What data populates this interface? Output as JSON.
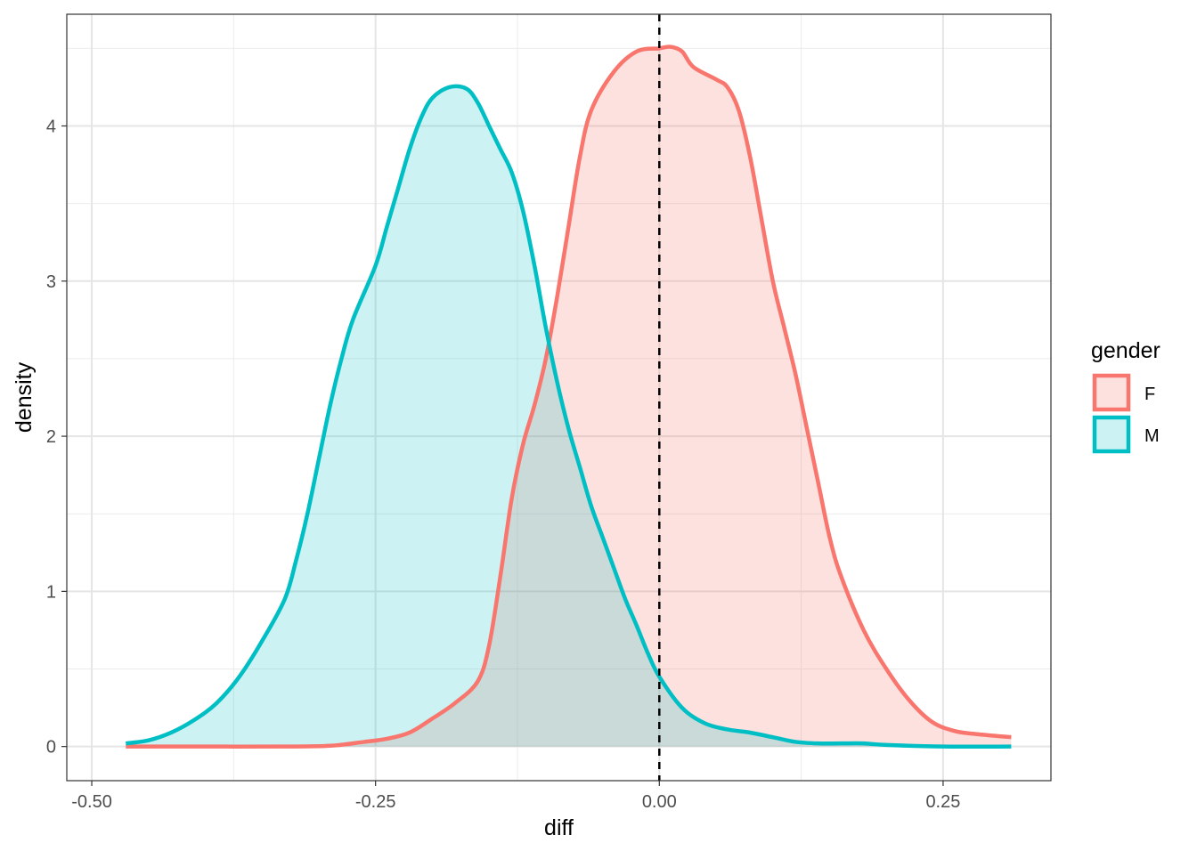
{
  "chart_data": {
    "type": "area",
    "xlabel": "diff",
    "ylabel": "density",
    "xlim": [
      -0.522,
      0.345
    ],
    "ylim": [
      -0.22,
      4.72
    ],
    "x_ticks": [
      -0.5,
      -0.25,
      0.0,
      0.25
    ],
    "x_tick_labels": [
      "-0.50",
      "-0.25",
      "0.00",
      "0.25"
    ],
    "y_ticks": [
      0,
      1,
      2,
      3,
      4
    ],
    "y_tick_labels": [
      "0",
      "1",
      "2",
      "3",
      "4"
    ],
    "grid": true,
    "legend": {
      "title": "gender",
      "position": "right"
    },
    "reference_line": {
      "x": 0.0,
      "style": "dashed",
      "color": "#000000"
    },
    "series": [
      {
        "name": "F",
        "color": "#F8766D",
        "fill": "#F8766D",
        "fill_opacity": 0.22,
        "points": [
          [
            -0.47,
            0.0
          ],
          [
            -0.4,
            0.0
          ],
          [
            -0.33,
            0.0
          ],
          [
            -0.29,
            0.005
          ],
          [
            -0.26,
            0.03
          ],
          [
            -0.24,
            0.05
          ],
          [
            -0.22,
            0.09
          ],
          [
            -0.2,
            0.18
          ],
          [
            -0.18,
            0.28
          ],
          [
            -0.16,
            0.42
          ],
          [
            -0.15,
            0.65
          ],
          [
            -0.14,
            1.1
          ],
          [
            -0.13,
            1.6
          ],
          [
            -0.12,
            1.95
          ],
          [
            -0.11,
            2.2
          ],
          [
            -0.1,
            2.5
          ],
          [
            -0.09,
            2.9
          ],
          [
            -0.08,
            3.35
          ],
          [
            -0.07,
            3.8
          ],
          [
            -0.06,
            4.1
          ],
          [
            -0.04,
            4.35
          ],
          [
            -0.02,
            4.48
          ],
          [
            0.0,
            4.5
          ],
          [
            0.01,
            4.51
          ],
          [
            0.02,
            4.48
          ],
          [
            0.03,
            4.38
          ],
          [
            0.05,
            4.3
          ],
          [
            0.06,
            4.25
          ],
          [
            0.07,
            4.1
          ],
          [
            0.08,
            3.8
          ],
          [
            0.09,
            3.4
          ],
          [
            0.1,
            3.0
          ],
          [
            0.11,
            2.7
          ],
          [
            0.12,
            2.4
          ],
          [
            0.13,
            2.05
          ],
          [
            0.14,
            1.7
          ],
          [
            0.15,
            1.35
          ],
          [
            0.16,
            1.1
          ],
          [
            0.18,
            0.75
          ],
          [
            0.2,
            0.5
          ],
          [
            0.22,
            0.3
          ],
          [
            0.24,
            0.16
          ],
          [
            0.26,
            0.1
          ],
          [
            0.28,
            0.08
          ],
          [
            0.31,
            0.06
          ]
        ]
      },
      {
        "name": "M",
        "color": "#00BFC4",
        "fill": "#00BFC4",
        "fill_opacity": 0.2,
        "points": [
          [
            -0.47,
            0.02
          ],
          [
            -0.45,
            0.04
          ],
          [
            -0.43,
            0.09
          ],
          [
            -0.41,
            0.17
          ],
          [
            -0.39,
            0.28
          ],
          [
            -0.37,
            0.45
          ],
          [
            -0.35,
            0.68
          ],
          [
            -0.33,
            0.95
          ],
          [
            -0.32,
            1.2
          ],
          [
            -0.31,
            1.5
          ],
          [
            -0.3,
            1.85
          ],
          [
            -0.29,
            2.2
          ],
          [
            -0.28,
            2.5
          ],
          [
            -0.27,
            2.75
          ],
          [
            -0.25,
            3.1
          ],
          [
            -0.24,
            3.35
          ],
          [
            -0.23,
            3.6
          ],
          [
            -0.22,
            3.85
          ],
          [
            -0.21,
            4.05
          ],
          [
            -0.2,
            4.18
          ],
          [
            -0.185,
            4.25
          ],
          [
            -0.17,
            4.24
          ],
          [
            -0.16,
            4.15
          ],
          [
            -0.15,
            4.0
          ],
          [
            -0.14,
            3.85
          ],
          [
            -0.13,
            3.7
          ],
          [
            -0.12,
            3.45
          ],
          [
            -0.11,
            3.1
          ],
          [
            -0.1,
            2.7
          ],
          [
            -0.09,
            2.35
          ],
          [
            -0.08,
            2.05
          ],
          [
            -0.07,
            1.8
          ],
          [
            -0.06,
            1.55
          ],
          [
            -0.05,
            1.35
          ],
          [
            -0.04,
            1.15
          ],
          [
            -0.03,
            0.95
          ],
          [
            -0.02,
            0.78
          ],
          [
            -0.01,
            0.6
          ],
          [
            0.0,
            0.45
          ],
          [
            0.02,
            0.25
          ],
          [
            0.04,
            0.15
          ],
          [
            0.06,
            0.11
          ],
          [
            0.08,
            0.09
          ],
          [
            0.1,
            0.06
          ],
          [
            0.12,
            0.03
          ],
          [
            0.14,
            0.02
          ],
          [
            0.16,
            0.02
          ],
          [
            0.18,
            0.02
          ],
          [
            0.2,
            0.01
          ],
          [
            0.25,
            0.0
          ],
          [
            0.31,
            0.0
          ]
        ]
      }
    ]
  }
}
